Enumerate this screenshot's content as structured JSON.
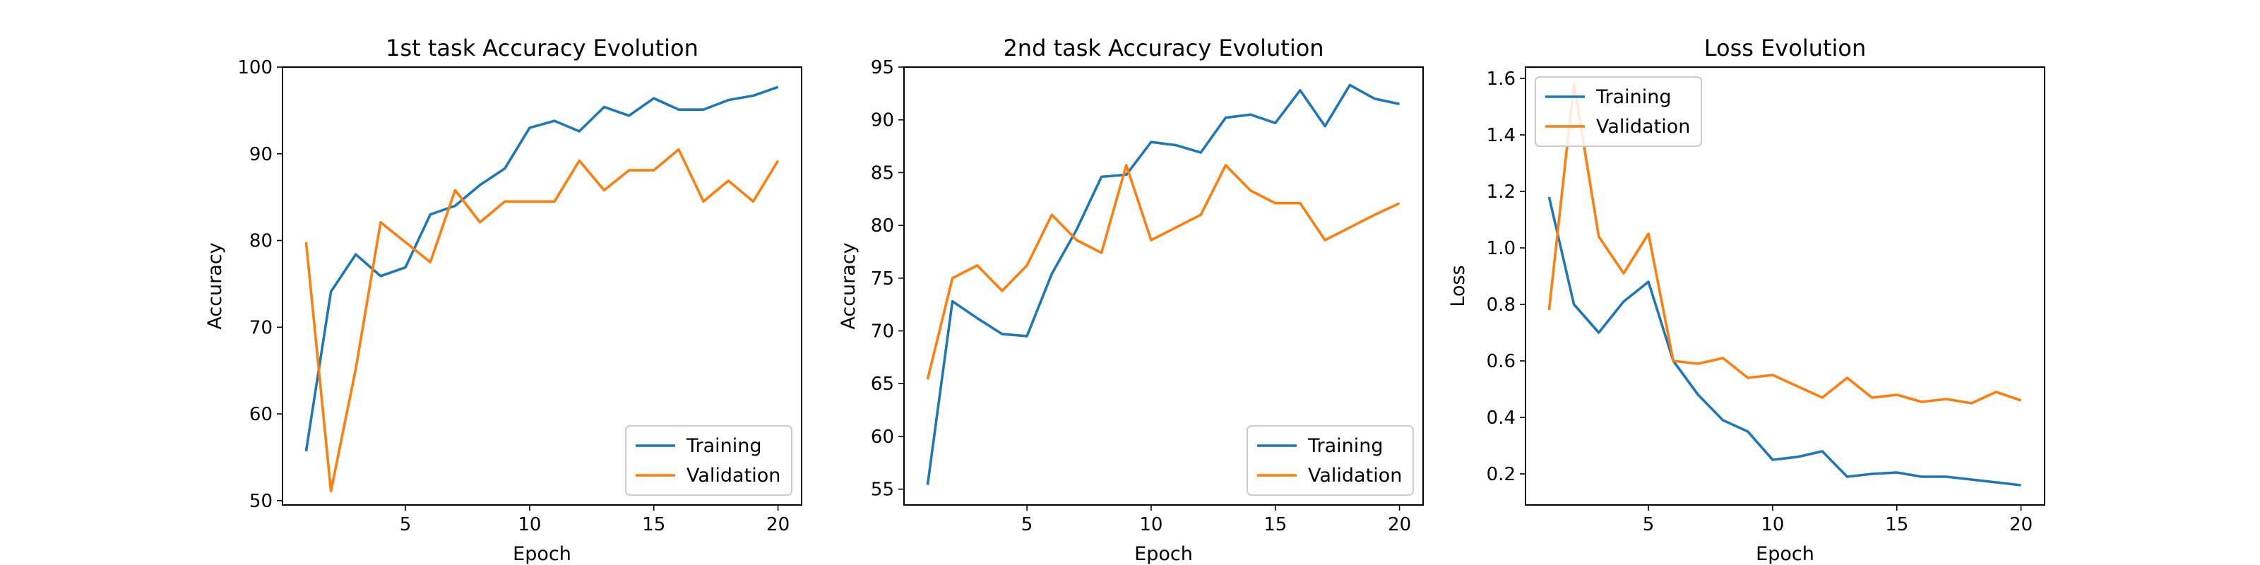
{
  "colors": {
    "training": "#1f77b4",
    "validation": "#ff7f0e"
  },
  "chart_data": [
    {
      "type": "line",
      "title": "1st task Accuracy Evolution",
      "xlabel": "Epoch",
      "ylabel": "Accuracy",
      "xlim": [
        0.05,
        20.95
      ],
      "ylim": [
        49.5,
        100
      ],
      "xticks": [
        5,
        10,
        15,
        20
      ],
      "xtick_labels": [
        "5",
        "10",
        "15",
        "20"
      ],
      "yticks": [
        50,
        60,
        70,
        80,
        90,
        100
      ],
      "ytick_labels": [
        "50",
        "60",
        "70",
        "80",
        "90",
        "100"
      ],
      "legend_position": "lower-right",
      "grid": false,
      "x": [
        1,
        2,
        3,
        4,
        5,
        6,
        7,
        8,
        9,
        10,
        11,
        12,
        13,
        14,
        15,
        16,
        17,
        18,
        19,
        20
      ],
      "series": [
        {
          "name": "Training",
          "color": "#1f77b4",
          "values": [
            55.7,
            74.1,
            78.4,
            75.9,
            76.9,
            83.0,
            84.0,
            86.4,
            88.3,
            93.0,
            93.8,
            92.6,
            95.4,
            94.4,
            96.4,
            95.1,
            95.1,
            96.2,
            96.7,
            97.7
          ]
        },
        {
          "name": "Validation",
          "color": "#ff7f0e",
          "values": [
            79.8,
            51.1,
            65.2,
            82.1,
            79.8,
            77.5,
            85.8,
            82.1,
            84.5,
            84.5,
            84.5,
            89.2,
            85.8,
            88.1,
            88.1,
            90.5,
            84.5,
            86.9,
            84.5,
            89.2
          ]
        }
      ]
    },
    {
      "type": "line",
      "title": "2nd task Accuracy Evolution",
      "xlabel": "Epoch",
      "ylabel": "Accuracy",
      "xlim": [
        0.05,
        20.95
      ],
      "ylim": [
        53.5,
        95
      ],
      "xticks": [
        5,
        10,
        15,
        20
      ],
      "xtick_labels": [
        "5",
        "10",
        "15",
        "20"
      ],
      "yticks": [
        55,
        60,
        65,
        70,
        75,
        80,
        85,
        90,
        95
      ],
      "ytick_labels": [
        "55",
        "60",
        "65",
        "70",
        "75",
        "80",
        "85",
        "90",
        "95"
      ],
      "legend_position": "lower-right",
      "grid": false,
      "x": [
        1,
        2,
        3,
        4,
        5,
        6,
        7,
        8,
        9,
        10,
        11,
        12,
        13,
        14,
        15,
        16,
        17,
        18,
        19,
        20
      ],
      "series": [
        {
          "name": "Training",
          "color": "#1f77b4",
          "values": [
            55.4,
            72.8,
            71.2,
            69.7,
            69.5,
            75.4,
            79.6,
            84.6,
            84.8,
            87.9,
            87.6,
            86.9,
            90.2,
            90.5,
            89.7,
            92.8,
            89.4,
            93.3,
            92.0,
            91.5
          ]
        },
        {
          "name": "Validation",
          "color": "#ff7f0e",
          "values": [
            65.4,
            75.0,
            76.2,
            73.8,
            76.2,
            81.0,
            78.6,
            77.4,
            85.7,
            78.6,
            79.8,
            81.0,
            85.7,
            83.3,
            82.1,
            82.1,
            78.6,
            79.8,
            81.0,
            82.1
          ]
        }
      ]
    },
    {
      "type": "line",
      "title": "Loss Evolution",
      "xlabel": "Epoch",
      "ylabel": "Loss",
      "xlim": [
        0.05,
        20.95
      ],
      "ylim": [
        0.09,
        1.64
      ],
      "xticks": [
        5,
        10,
        15,
        20
      ],
      "xtick_labels": [
        "5",
        "10",
        "15",
        "20"
      ],
      "yticks": [
        0.2,
        0.4,
        0.6,
        0.8,
        1.0,
        1.2,
        1.4,
        1.6
      ],
      "ytick_labels": [
        "0.2",
        "0.4",
        "0.6",
        "0.8",
        "1.0",
        "1.2",
        "1.4",
        "1.6"
      ],
      "legend_position": "upper-left",
      "grid": false,
      "x": [
        1,
        2,
        3,
        4,
        5,
        6,
        7,
        8,
        9,
        10,
        11,
        12,
        13,
        14,
        15,
        16,
        17,
        18,
        19,
        20
      ],
      "series": [
        {
          "name": "Training",
          "color": "#1f77b4",
          "values": [
            1.18,
            0.8,
            0.7,
            0.81,
            0.88,
            0.6,
            0.48,
            0.39,
            0.35,
            0.25,
            0.26,
            0.28,
            0.19,
            0.2,
            0.205,
            0.19,
            0.19,
            0.18,
            0.17,
            0.16
          ]
        },
        {
          "name": "Validation",
          "color": "#ff7f0e",
          "values": [
            0.78,
            1.58,
            1.04,
            0.91,
            1.05,
            0.6,
            0.59,
            0.61,
            0.54,
            0.55,
            0.51,
            0.47,
            0.54,
            0.47,
            0.48,
            0.455,
            0.465,
            0.45,
            0.49,
            0.46
          ]
        }
      ]
    }
  ]
}
